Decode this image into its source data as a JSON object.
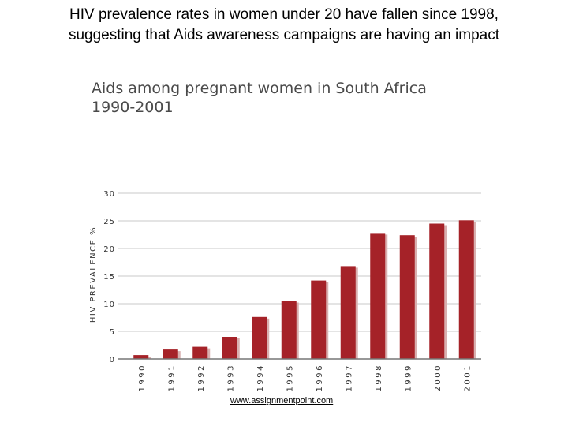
{
  "slide": {
    "title_line1": "HIV prevalence rates in women under 20 have fallen since 1998,",
    "title_line2": "suggesting that Aids awareness campaigns are having an impact"
  },
  "chart_data": {
    "type": "bar",
    "title": "Aids among pregnant women in South Africa",
    "subtitle": "1990-2001",
    "ylabel": "HIV PREVALENCE %",
    "xlabel": "",
    "ylim": [
      0,
      30
    ],
    "yticks": [
      0,
      5,
      10,
      15,
      20,
      25,
      30
    ],
    "grid": true,
    "categories": [
      "1990",
      "1991",
      "1992",
      "1993",
      "1994",
      "1995",
      "1996",
      "1997",
      "1998",
      "1999",
      "2000",
      "2001"
    ],
    "values": [
      0.7,
      1.7,
      2.2,
      4.0,
      7.6,
      10.5,
      14.2,
      16.8,
      22.8,
      22.4,
      24.5,
      25.1
    ],
    "bar_color": "#a52228",
    "shadow_color": "#d9b0b0"
  },
  "footer": {
    "link_text": "www.assignmentpoint.com"
  }
}
